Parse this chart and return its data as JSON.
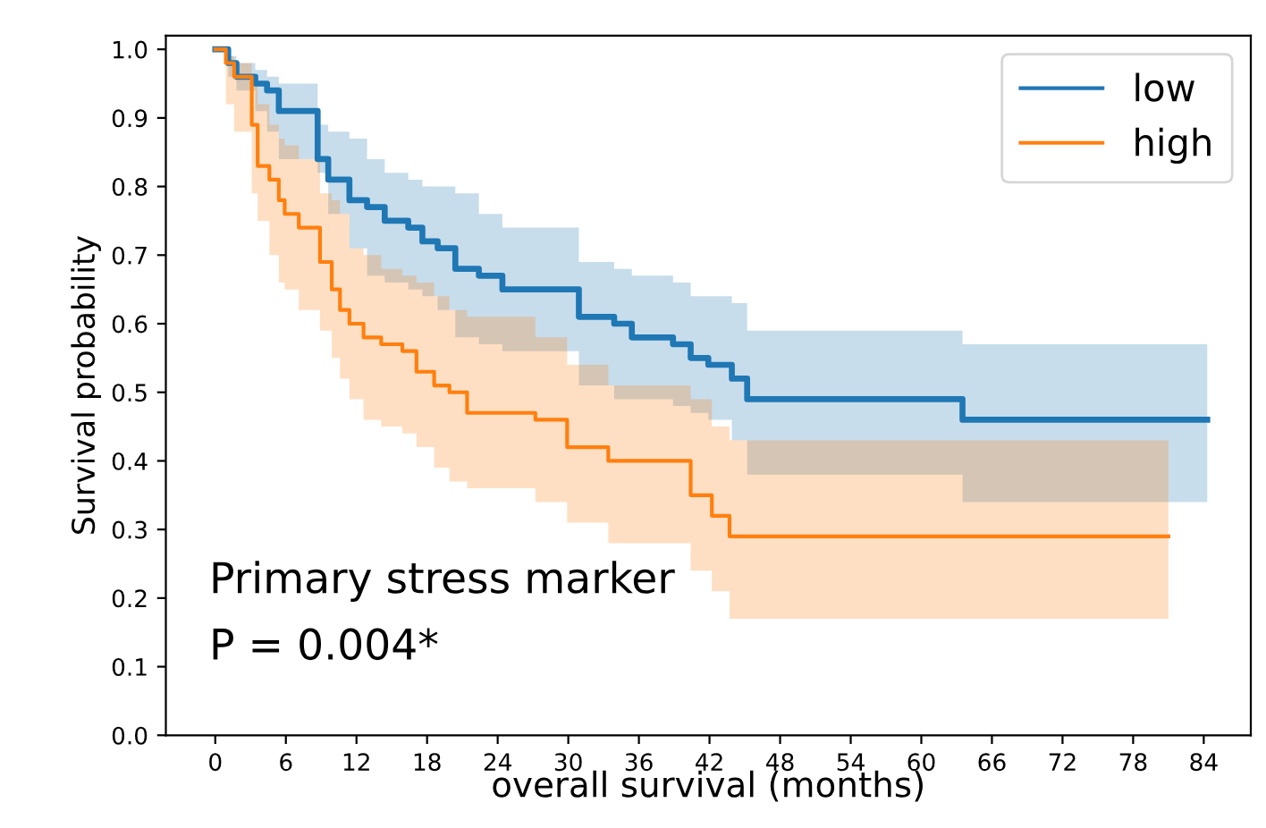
{
  "chart_data": {
    "type": "step",
    "xlabel": "overall survival (months)",
    "ylabel": "Survival probability",
    "annotations": [
      "Primary stress marker",
      "P = 0.004*"
    ],
    "xlim": [
      -4.2,
      88
    ],
    "ylim": [
      0,
      1.02
    ],
    "xticks": [
      0,
      6,
      12,
      18,
      24,
      30,
      36,
      42,
      48,
      54,
      60,
      66,
      72,
      78,
      84
    ],
    "yticks": [
      {
        "value": 0,
        "label": "0.0"
      },
      {
        "value": 0.1,
        "label": "0.1"
      },
      {
        "value": 0.2,
        "label": "0.2"
      },
      {
        "value": 0.3,
        "label": "0.3"
      },
      {
        "value": 0.4,
        "label": "0.4"
      },
      {
        "value": 0.5,
        "label": "0.5"
      },
      {
        "value": 0.6,
        "label": "0.6"
      },
      {
        "value": 0.7,
        "label": "0.7"
      },
      {
        "value": 0.8,
        "label": "0.8"
      },
      {
        "value": 0.9,
        "label": "0.9"
      },
      {
        "value": 1,
        "label": "1.0"
      }
    ],
    "grid": false,
    "legend": "top right",
    "marker": "none",
    "line_style": "solid",
    "series": [
      {
        "name": "low",
        "color": "#1f77b4",
        "x": [
          0,
          1.1,
          1.8,
          3.4,
          4.4,
          5.4,
          8.7,
          9.6,
          11.4,
          12.9,
          14.4,
          16.4,
          17.6,
          18.9,
          20.4,
          22.4,
          24.4,
          30.9,
          33.9,
          35.4,
          38.9,
          40.4,
          41.9,
          43.9,
          45.2,
          63.5,
          84.3
        ],
        "values": [
          1.0,
          0.98,
          0.96,
          0.95,
          0.94,
          0.91,
          0.84,
          0.81,
          0.78,
          0.77,
          0.75,
          0.74,
          0.72,
          0.71,
          0.68,
          0.67,
          0.65,
          0.61,
          0.6,
          0.58,
          0.57,
          0.55,
          0.54,
          0.52,
          0.49,
          0.46,
          0.46
        ],
        "upper": [
          1.0,
          0.99,
          0.98,
          0.97,
          0.96,
          0.95,
          0.89,
          0.88,
          0.87,
          0.84,
          0.82,
          0.81,
          0.8,
          0.8,
          0.79,
          0.76,
          0.74,
          0.69,
          0.68,
          0.67,
          0.66,
          0.64,
          0.64,
          0.63,
          0.59,
          0.57,
          0.57
        ],
        "lower": [
          1.0,
          0.96,
          0.94,
          0.91,
          0.88,
          0.84,
          0.82,
          0.76,
          0.71,
          0.67,
          0.66,
          0.65,
          0.64,
          0.62,
          0.58,
          0.57,
          0.56,
          0.51,
          0.49,
          0.49,
          0.48,
          0.47,
          0.46,
          0.43,
          0.38,
          0.34,
          0.34
        ]
      },
      {
        "name": "high",
        "color": "#ff7f0e",
        "x": [
          0,
          0.9,
          1.6,
          3.1,
          3.6,
          4.6,
          5.4,
          5.9,
          7.1,
          8.9,
          9.9,
          10.6,
          11.4,
          12.6,
          14.1,
          15.9,
          17.1,
          18.6,
          19.9,
          21.4,
          27.2,
          29.9,
          33.4,
          40.4,
          42.2,
          43.7,
          81
        ],
        "values": [
          1.0,
          0.98,
          0.96,
          0.89,
          0.83,
          0.81,
          0.78,
          0.76,
          0.74,
          0.69,
          0.65,
          0.62,
          0.6,
          0.58,
          0.57,
          0.56,
          0.53,
          0.51,
          0.5,
          0.47,
          0.46,
          0.42,
          0.4,
          0.35,
          0.32,
          0.29,
          0.29
        ],
        "upper": [
          1.0,
          0.99,
          0.98,
          0.95,
          0.92,
          0.89,
          0.87,
          0.86,
          0.84,
          0.79,
          0.78,
          0.76,
          0.71,
          0.7,
          0.68,
          0.67,
          0.66,
          0.64,
          0.62,
          0.61,
          0.58,
          0.54,
          0.51,
          0.49,
          0.45,
          0.43,
          0.41
        ],
        "lower": [
          1.0,
          0.92,
          0.88,
          0.79,
          0.75,
          0.7,
          0.66,
          0.65,
          0.62,
          0.59,
          0.55,
          0.52,
          0.49,
          0.46,
          0.45,
          0.44,
          0.42,
          0.39,
          0.37,
          0.36,
          0.34,
          0.31,
          0.28,
          0.24,
          0.21,
          0.17,
          0.17
        ]
      }
    ]
  }
}
